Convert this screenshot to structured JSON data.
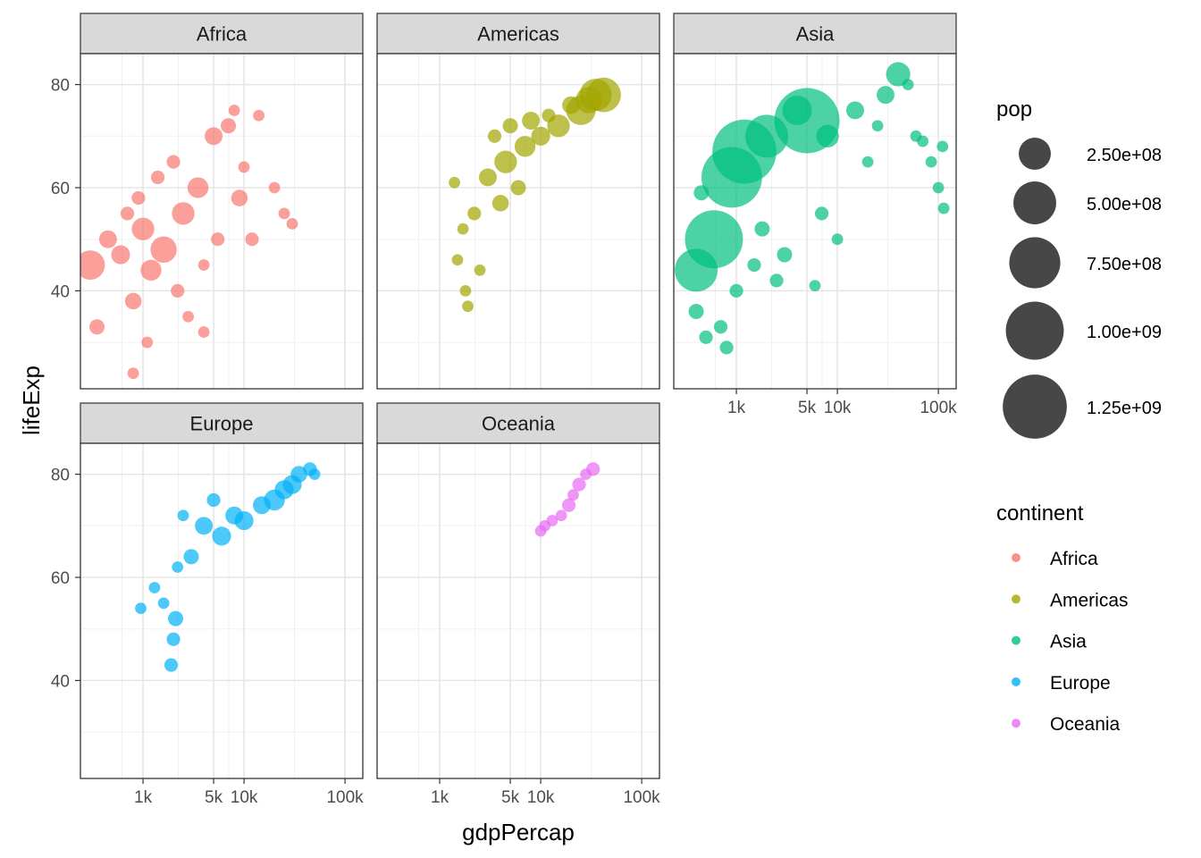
{
  "chart_data": {
    "type": "scatter",
    "title": "",
    "xlabel": "gdpPercap",
    "ylabel": "lifeExp",
    "x_scale": "log10",
    "xlim": [
      240,
      150000
    ],
    "ylim": [
      21,
      86
    ],
    "x_ticks": [
      {
        "value": 1000,
        "label": "1k"
      },
      {
        "value": 5000,
        "label": "5k"
      },
      {
        "value": 10000,
        "label": "10k"
      },
      {
        "value": 100000,
        "label": "100k"
      }
    ],
    "y_ticks": [
      {
        "value": 40,
        "label": "40"
      },
      {
        "value": 60,
        "label": "60"
      },
      {
        "value": 80,
        "label": "80"
      }
    ],
    "grid": true,
    "facets": [
      {
        "name": "Africa",
        "color": "#F8766D",
        "points": [
          {
            "x": 300,
            "y": 45,
            "pop": 200000000
          },
          {
            "x": 350,
            "y": 33,
            "pop": 30000000
          },
          {
            "x": 450,
            "y": 50,
            "pop": 50000000
          },
          {
            "x": 600,
            "y": 47,
            "pop": 60000000
          },
          {
            "x": 700,
            "y": 55,
            "pop": 20000000
          },
          {
            "x": 800,
            "y": 38,
            "pop": 40000000
          },
          {
            "x": 800,
            "y": 24,
            "pop": 10000000
          },
          {
            "x": 900,
            "y": 58,
            "pop": 20000000
          },
          {
            "x": 1000,
            "y": 52,
            "pop": 100000000
          },
          {
            "x": 1100,
            "y": 30,
            "pop": 10000000
          },
          {
            "x": 1200,
            "y": 44,
            "pop": 80000000
          },
          {
            "x": 1400,
            "y": 62,
            "pop": 20000000
          },
          {
            "x": 1600,
            "y": 48,
            "pop": 150000000
          },
          {
            "x": 2000,
            "y": 65,
            "pop": 20000000
          },
          {
            "x": 2200,
            "y": 40,
            "pop": 20000000
          },
          {
            "x": 2500,
            "y": 55,
            "pop": 100000000
          },
          {
            "x": 2800,
            "y": 35,
            "pop": 10000000
          },
          {
            "x": 3500,
            "y": 60,
            "pop": 80000000
          },
          {
            "x": 4000,
            "y": 45,
            "pop": 10000000
          },
          {
            "x": 4000,
            "y": 32,
            "pop": 10000000
          },
          {
            "x": 5000,
            "y": 70,
            "pop": 50000000
          },
          {
            "x": 5500,
            "y": 50,
            "pop": 20000000
          },
          {
            "x": 7000,
            "y": 72,
            "pop": 30000000
          },
          {
            "x": 8000,
            "y": 75,
            "pop": 10000000
          },
          {
            "x": 9000,
            "y": 58,
            "pop": 40000000
          },
          {
            "x": 10000,
            "y": 64,
            "pop": 10000000
          },
          {
            "x": 12000,
            "y": 50,
            "pop": 20000000
          },
          {
            "x": 14000,
            "y": 74,
            "pop": 10000000
          },
          {
            "x": 20000,
            "y": 60,
            "pop": 10000000
          },
          {
            "x": 25000,
            "y": 55,
            "pop": 10000000
          },
          {
            "x": 30000,
            "y": 53,
            "pop": 10000000
          }
        ]
      },
      {
        "name": "Americas",
        "color": "#A3A500",
        "points": [
          {
            "x": 1400,
            "y": 61,
            "pop": 10000000
          },
          {
            "x": 1500,
            "y": 46,
            "pop": 10000000
          },
          {
            "x": 1700,
            "y": 52,
            "pop": 10000000
          },
          {
            "x": 1800,
            "y": 40,
            "pop": 10000000
          },
          {
            "x": 1900,
            "y": 37,
            "pop": 10000000
          },
          {
            "x": 2200,
            "y": 55,
            "pop": 20000000
          },
          {
            "x": 2500,
            "y": 44,
            "pop": 10000000
          },
          {
            "x": 3000,
            "y": 62,
            "pop": 50000000
          },
          {
            "x": 3500,
            "y": 70,
            "pop": 20000000
          },
          {
            "x": 4000,
            "y": 57,
            "pop": 40000000
          },
          {
            "x": 4500,
            "y": 65,
            "pop": 100000000
          },
          {
            "x": 5000,
            "y": 72,
            "pop": 30000000
          },
          {
            "x": 6000,
            "y": 60,
            "pop": 30000000
          },
          {
            "x": 7000,
            "y": 68,
            "pop": 80000000
          },
          {
            "x": 8000,
            "y": 73,
            "pop": 50000000
          },
          {
            "x": 10000,
            "y": 70,
            "pop": 60000000
          },
          {
            "x": 12000,
            "y": 74,
            "pop": 20000000
          },
          {
            "x": 15000,
            "y": 72,
            "pop": 100000000
          },
          {
            "x": 20000,
            "y": 76,
            "pop": 50000000
          },
          {
            "x": 25000,
            "y": 75,
            "pop": 200000000
          },
          {
            "x": 30000,
            "y": 77,
            "pop": 150000000
          },
          {
            "x": 35000,
            "y": 78,
            "pop": 250000000
          },
          {
            "x": 42000,
            "y": 78,
            "pop": 300000000
          }
        ]
      },
      {
        "name": "Asia",
        "color": "#00BF7D",
        "points": [
          {
            "x": 400,
            "y": 44,
            "pop": 500000000
          },
          {
            "x": 400,
            "y": 36,
            "pop": 30000000
          },
          {
            "x": 450,
            "y": 59,
            "pop": 30000000
          },
          {
            "x": 500,
            "y": 31,
            "pop": 20000000
          },
          {
            "x": 600,
            "y": 50,
            "pop": 1000000000
          },
          {
            "x": 700,
            "y": 33,
            "pop": 20000000
          },
          {
            "x": 800,
            "y": 29,
            "pop": 20000000
          },
          {
            "x": 900,
            "y": 62,
            "pop": 1100000000
          },
          {
            "x": 1000,
            "y": 40,
            "pop": 20000000
          },
          {
            "x": 1200,
            "y": 67,
            "pop": 1250000000
          },
          {
            "x": 1500,
            "y": 45,
            "pop": 20000000
          },
          {
            "x": 1800,
            "y": 52,
            "pop": 30000000
          },
          {
            "x": 2000,
            "y": 70,
            "pop": 500000000
          },
          {
            "x": 2500,
            "y": 42,
            "pop": 20000000
          },
          {
            "x": 3000,
            "y": 47,
            "pop": 30000000
          },
          {
            "x": 4000,
            "y": 75,
            "pop": 200000000
          },
          {
            "x": 5000,
            "y": 73,
            "pop": 1300000000
          },
          {
            "x": 6000,
            "y": 41,
            "pop": 10000000
          },
          {
            "x": 7000,
            "y": 55,
            "pop": 20000000
          },
          {
            "x": 8000,
            "y": 70,
            "pop": 100000000
          },
          {
            "x": 10000,
            "y": 50,
            "pop": 10000000
          },
          {
            "x": 15000,
            "y": 75,
            "pop": 50000000
          },
          {
            "x": 20000,
            "y": 65,
            "pop": 10000000
          },
          {
            "x": 25000,
            "y": 72,
            "pop": 10000000
          },
          {
            "x": 30000,
            "y": 78,
            "pop": 50000000
          },
          {
            "x": 40000,
            "y": 82,
            "pop": 120000000
          },
          {
            "x": 50000,
            "y": 80,
            "pop": 10000000
          },
          {
            "x": 60000,
            "y": 70,
            "pop": 10000000
          },
          {
            "x": 70000,
            "y": 69,
            "pop": 10000000
          },
          {
            "x": 85000,
            "y": 65,
            "pop": 10000000
          },
          {
            "x": 100000,
            "y": 60,
            "pop": 10000000
          },
          {
            "x": 110000,
            "y": 68,
            "pop": 10000000
          },
          {
            "x": 113000,
            "y": 56,
            "pop": 10000000
          }
        ]
      },
      {
        "name": "Europe",
        "color": "#00B0F6",
        "points": [
          {
            "x": 950,
            "y": 54,
            "pop": 10000000
          },
          {
            "x": 1300,
            "y": 58,
            "pop": 10000000
          },
          {
            "x": 1600,
            "y": 55,
            "pop": 10000000
          },
          {
            "x": 1900,
            "y": 43,
            "pop": 20000000
          },
          {
            "x": 2000,
            "y": 48,
            "pop": 20000000
          },
          {
            "x": 2100,
            "y": 52,
            "pop": 30000000
          },
          {
            "x": 2200,
            "y": 62,
            "pop": 10000000
          },
          {
            "x": 2500,
            "y": 72,
            "pop": 10000000
          },
          {
            "x": 3000,
            "y": 64,
            "pop": 30000000
          },
          {
            "x": 4000,
            "y": 70,
            "pop": 50000000
          },
          {
            "x": 5000,
            "y": 75,
            "pop": 20000000
          },
          {
            "x": 6000,
            "y": 68,
            "pop": 60000000
          },
          {
            "x": 8000,
            "y": 72,
            "pop": 50000000
          },
          {
            "x": 10000,
            "y": 71,
            "pop": 60000000
          },
          {
            "x": 15000,
            "y": 74,
            "pop": 50000000
          },
          {
            "x": 20000,
            "y": 75,
            "pop": 80000000
          },
          {
            "x": 25000,
            "y": 77,
            "pop": 60000000
          },
          {
            "x": 30000,
            "y": 78,
            "pop": 60000000
          },
          {
            "x": 35000,
            "y": 80,
            "pop": 40000000
          },
          {
            "x": 45000,
            "y": 81,
            "pop": 20000000
          },
          {
            "x": 50000,
            "y": 80,
            "pop": 10000000
          }
        ]
      },
      {
        "name": "Oceania",
        "color": "#E76BF3",
        "points": [
          {
            "x": 10000,
            "y": 69,
            "pop": 10000000
          },
          {
            "x": 11000,
            "y": 70,
            "pop": 10000000
          },
          {
            "x": 13000,
            "y": 71,
            "pop": 10000000
          },
          {
            "x": 16000,
            "y": 72,
            "pop": 10000000
          },
          {
            "x": 19000,
            "y": 74,
            "pop": 20000000
          },
          {
            "x": 21000,
            "y": 76,
            "pop": 10000000
          },
          {
            "x": 24000,
            "y": 78,
            "pop": 20000000
          },
          {
            "x": 28000,
            "y": 80,
            "pop": 10000000
          },
          {
            "x": 33000,
            "y": 81,
            "pop": 20000000
          }
        ]
      }
    ],
    "size_legend": {
      "title": "pop",
      "entries": [
        {
          "value": 250000000,
          "label": "2.50e+08"
        },
        {
          "value": 500000000,
          "label": "5.00e+08"
        },
        {
          "value": 750000000,
          "label": "7.50e+08"
        },
        {
          "value": 1000000000,
          "label": "1.00e+09"
        },
        {
          "value": 1250000000,
          "label": "1.25e+09"
        }
      ]
    },
    "color_legend": {
      "title": "continent",
      "entries": [
        {
          "label": "Africa",
          "color": "#F8766D"
        },
        {
          "label": "Americas",
          "color": "#A3A500"
        },
        {
          "label": "Asia",
          "color": "#00BF7D"
        },
        {
          "label": "Europe",
          "color": "#00B0F6"
        },
        {
          "label": "Oceania",
          "color": "#E76BF3"
        }
      ]
    }
  }
}
